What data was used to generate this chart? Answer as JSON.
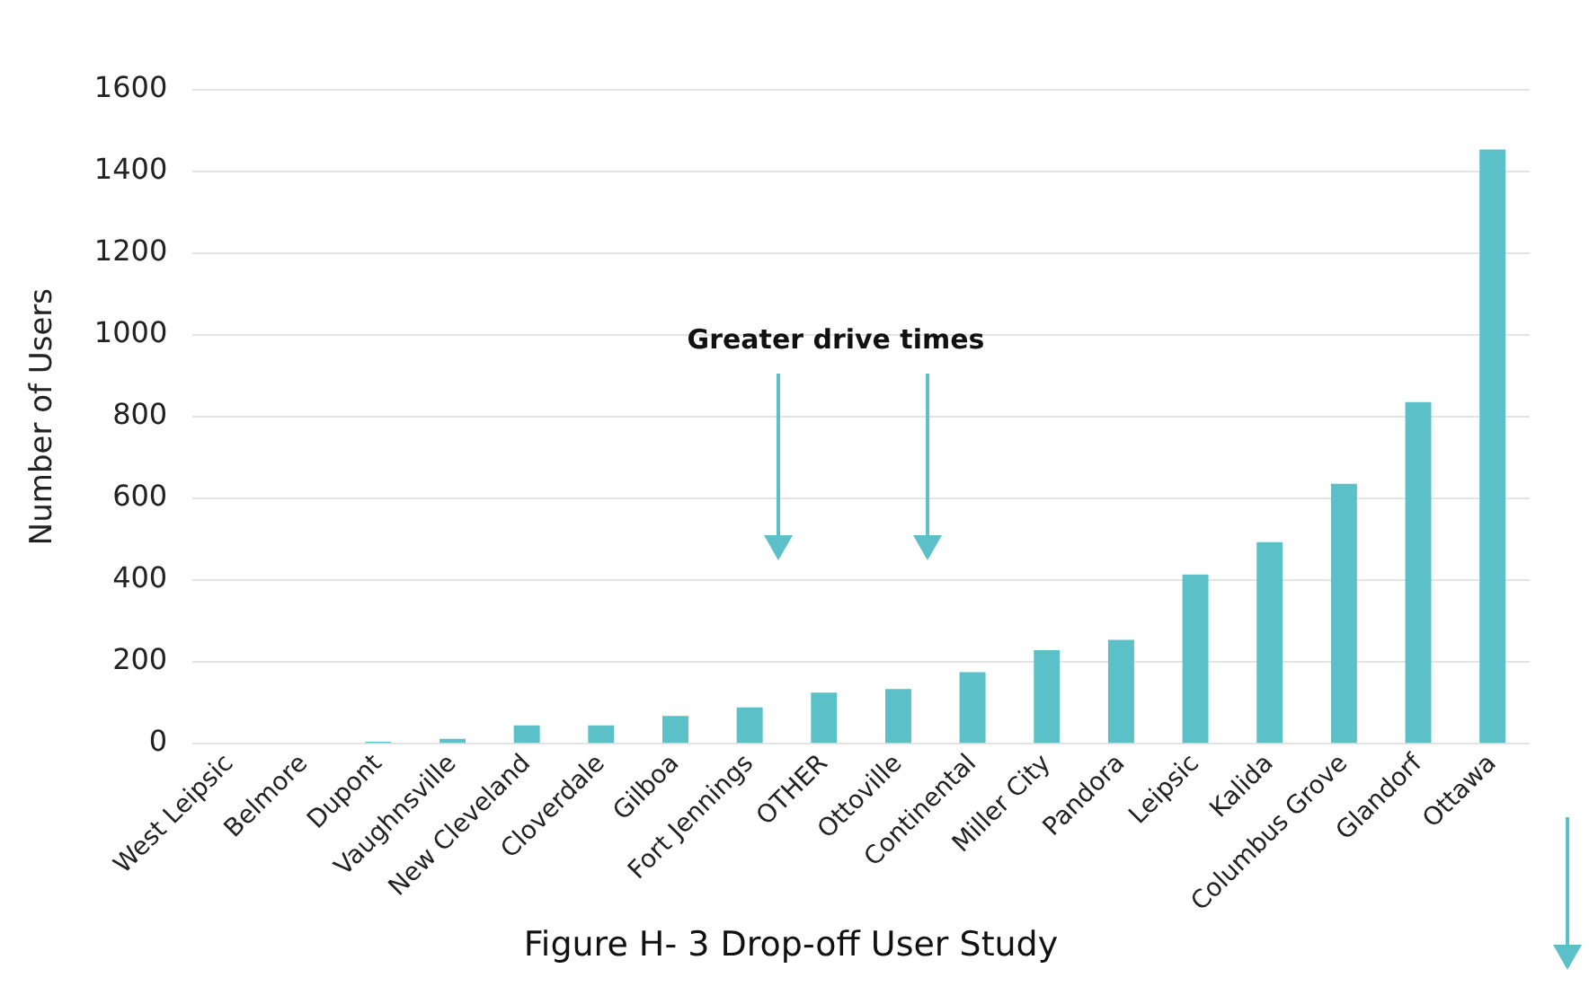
{
  "chart_data": {
    "type": "bar",
    "title": "Figure H- 3 Drop-off User Study",
    "ylabel": "Number of Users",
    "annotations": [
      "Greater drive times"
    ],
    "categories": [
      "West Leipsic",
      "Belmore",
      "Dupont",
      "Vaughnsville",
      "New Cleveland",
      "Cloverdale",
      "Gilboa",
      "Fort Jennings",
      "OTHER",
      "Ottoville",
      "Continental",
      "Miller City",
      "Pandora",
      "Leipsic",
      "Kalida",
      "Columbus Grove",
      "Glandorf",
      "Ottawa"
    ],
    "values": [
      0,
      0,
      5,
      12,
      45,
      45,
      68,
      89,
      125,
      134,
      175,
      229,
      254,
      414,
      493,
      636,
      836,
      1454
    ],
    "color": "#5bc0c8",
    "ylim": [
      0,
      1600
    ],
    "yticks": [
      0,
      200,
      400,
      600,
      800,
      1000,
      1200,
      1400,
      1600
    ],
    "grid": "y",
    "legend": false
  }
}
